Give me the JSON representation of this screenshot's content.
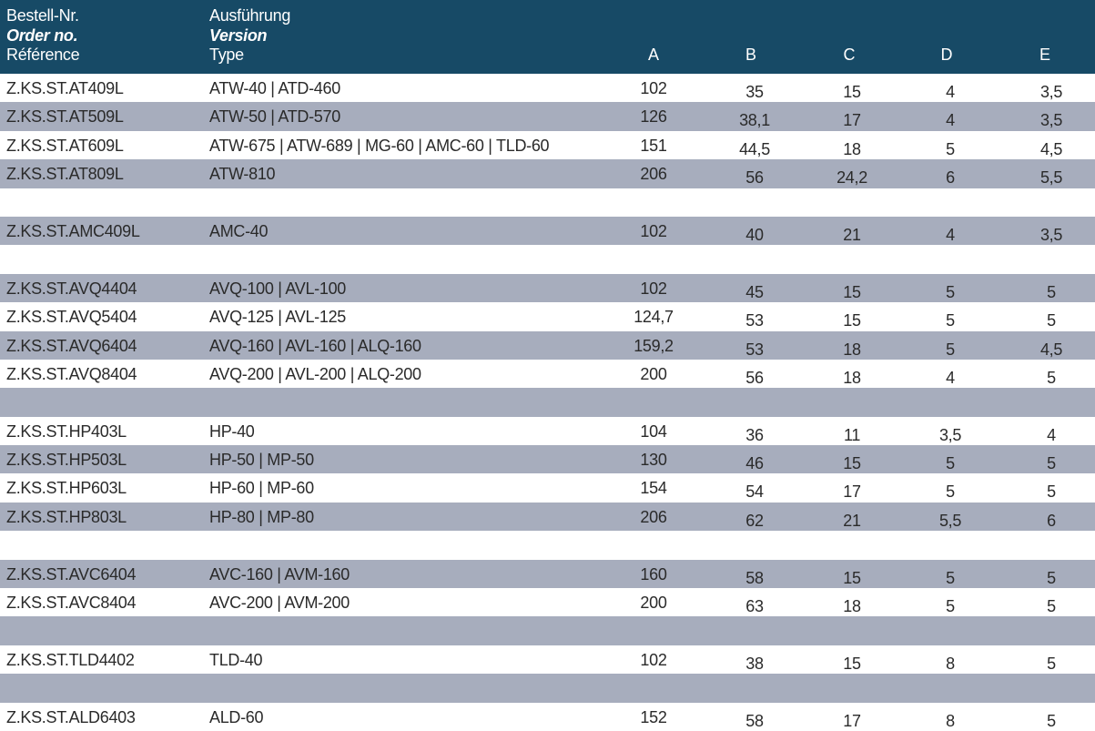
{
  "header": {
    "order_lines": [
      "Bestell-Nr.",
      "Order no.",
      "Référence"
    ],
    "version_lines": [
      "Ausführung",
      "Version",
      "Type"
    ],
    "cols": [
      "A",
      "B",
      "C",
      "D",
      "E"
    ]
  },
  "rows": [
    {
      "shade": false,
      "order": "Z.KS.ST.AT409L",
      "version": "ATW-40 | ATD-460",
      "A": "102",
      "B": "35",
      "C": "15",
      "D": "4",
      "E": "3,5"
    },
    {
      "shade": true,
      "order": "Z.KS.ST.AT509L",
      "version": "ATW-50 | ATD-570",
      "A": "126",
      "B": "38,1",
      "C": "17",
      "D": "4",
      "E": "3,5"
    },
    {
      "shade": false,
      "order": "Z.KS.ST.AT609L",
      "version": "ATW-675 | ATW-689 | MG-60 | AMC-60 | TLD-60",
      "A": "151",
      "B": "44,5",
      "C": "18",
      "D": "5",
      "E": "4,5"
    },
    {
      "shade": true,
      "order": "Z.KS.ST.AT809L",
      "version": "ATW-810",
      "A": "206",
      "B": "56",
      "C": "24,2",
      "D": "6",
      "E": "5,5"
    },
    {
      "shade": false,
      "order": "",
      "version": "",
      "A": "",
      "B": "",
      "C": "",
      "D": "",
      "E": ""
    },
    {
      "shade": true,
      "order": "Z.KS.ST.AMC409L",
      "version": "AMC-40",
      "A": "102",
      "B": "40",
      "C": "21",
      "D": "4",
      "E": "3,5"
    },
    {
      "shade": false,
      "order": "",
      "version": "",
      "A": "",
      "B": "",
      "C": "",
      "D": "",
      "E": ""
    },
    {
      "shade": true,
      "order": "Z.KS.ST.AVQ4404",
      "version": "AVQ-100 | AVL-100",
      "A": "102",
      "B": "45",
      "C": "15",
      "D": "5",
      "E": "5"
    },
    {
      "shade": false,
      "order": "Z.KS.ST.AVQ5404",
      "version": "AVQ-125 | AVL-125",
      "A": "124,7",
      "B": "53",
      "C": "15",
      "D": "5",
      "E": "5"
    },
    {
      "shade": true,
      "order": "Z.KS.ST.AVQ6404",
      "version": "AVQ-160 | AVL-160 | ALQ-160",
      "A": "159,2",
      "B": "53",
      "C": "18",
      "D": "5",
      "E": "4,5"
    },
    {
      "shade": false,
      "order": "Z.KS.ST.AVQ8404",
      "version": "AVQ-200 | AVL-200 | ALQ-200",
      "A": "200",
      "B": "56",
      "C": "18",
      "D": "4",
      "E": "5"
    },
    {
      "shade": true,
      "order": "",
      "version": "",
      "A": "",
      "B": "",
      "C": "",
      "D": "",
      "E": ""
    },
    {
      "shade": false,
      "order": "Z.KS.ST.HP403L",
      "version": "HP-40",
      "A": "104",
      "B": "36",
      "C": "11",
      "D": "3,5",
      "E": "4"
    },
    {
      "shade": true,
      "order": "Z.KS.ST.HP503L",
      "version": "HP-50 | MP-50",
      "A": "130",
      "B": "46",
      "C": "15",
      "D": "5",
      "E": "5"
    },
    {
      "shade": false,
      "order": "Z.KS.ST.HP603L",
      "version": "HP-60 | MP-60",
      "A": "154",
      "B": "54",
      "C": "17",
      "D": "5",
      "E": "5"
    },
    {
      "shade": true,
      "order": "Z.KS.ST.HP803L",
      "version": "HP-80 | MP-80",
      "A": "206",
      "B": "62",
      "C": "21",
      "D": "5,5",
      "E": "6"
    },
    {
      "shade": false,
      "order": "",
      "version": "",
      "A": "",
      "B": "",
      "C": "",
      "D": "",
      "E": ""
    },
    {
      "shade": true,
      "order": "Z.KS.ST.AVC6404",
      "version": "AVC-160 | AVM-160",
      "A": "160",
      "B": "58",
      "C": "15",
      "D": "5",
      "E": "5"
    },
    {
      "shade": false,
      "order": "Z.KS.ST.AVC8404",
      "version": "AVC-200 | AVM-200",
      "A": "200",
      "B": "63",
      "C": "18",
      "D": "5",
      "E": "5"
    },
    {
      "shade": true,
      "order": "",
      "version": "",
      "A": "",
      "B": "",
      "C": "",
      "D": "",
      "E": ""
    },
    {
      "shade": false,
      "order": "Z.KS.ST.TLD4402",
      "version": "TLD-40",
      "A": "102",
      "B": "38",
      "C": "15",
      "D": "8",
      "E": "5"
    },
    {
      "shade": true,
      "order": "",
      "version": "",
      "A": "",
      "B": "",
      "C": "",
      "D": "",
      "E": ""
    },
    {
      "shade": false,
      "order": "Z.KS.ST.ALD6403",
      "version": "ALD-60",
      "A": "152",
      "B": "58",
      "C": "17",
      "D": "8",
      "E": "5"
    }
  ]
}
